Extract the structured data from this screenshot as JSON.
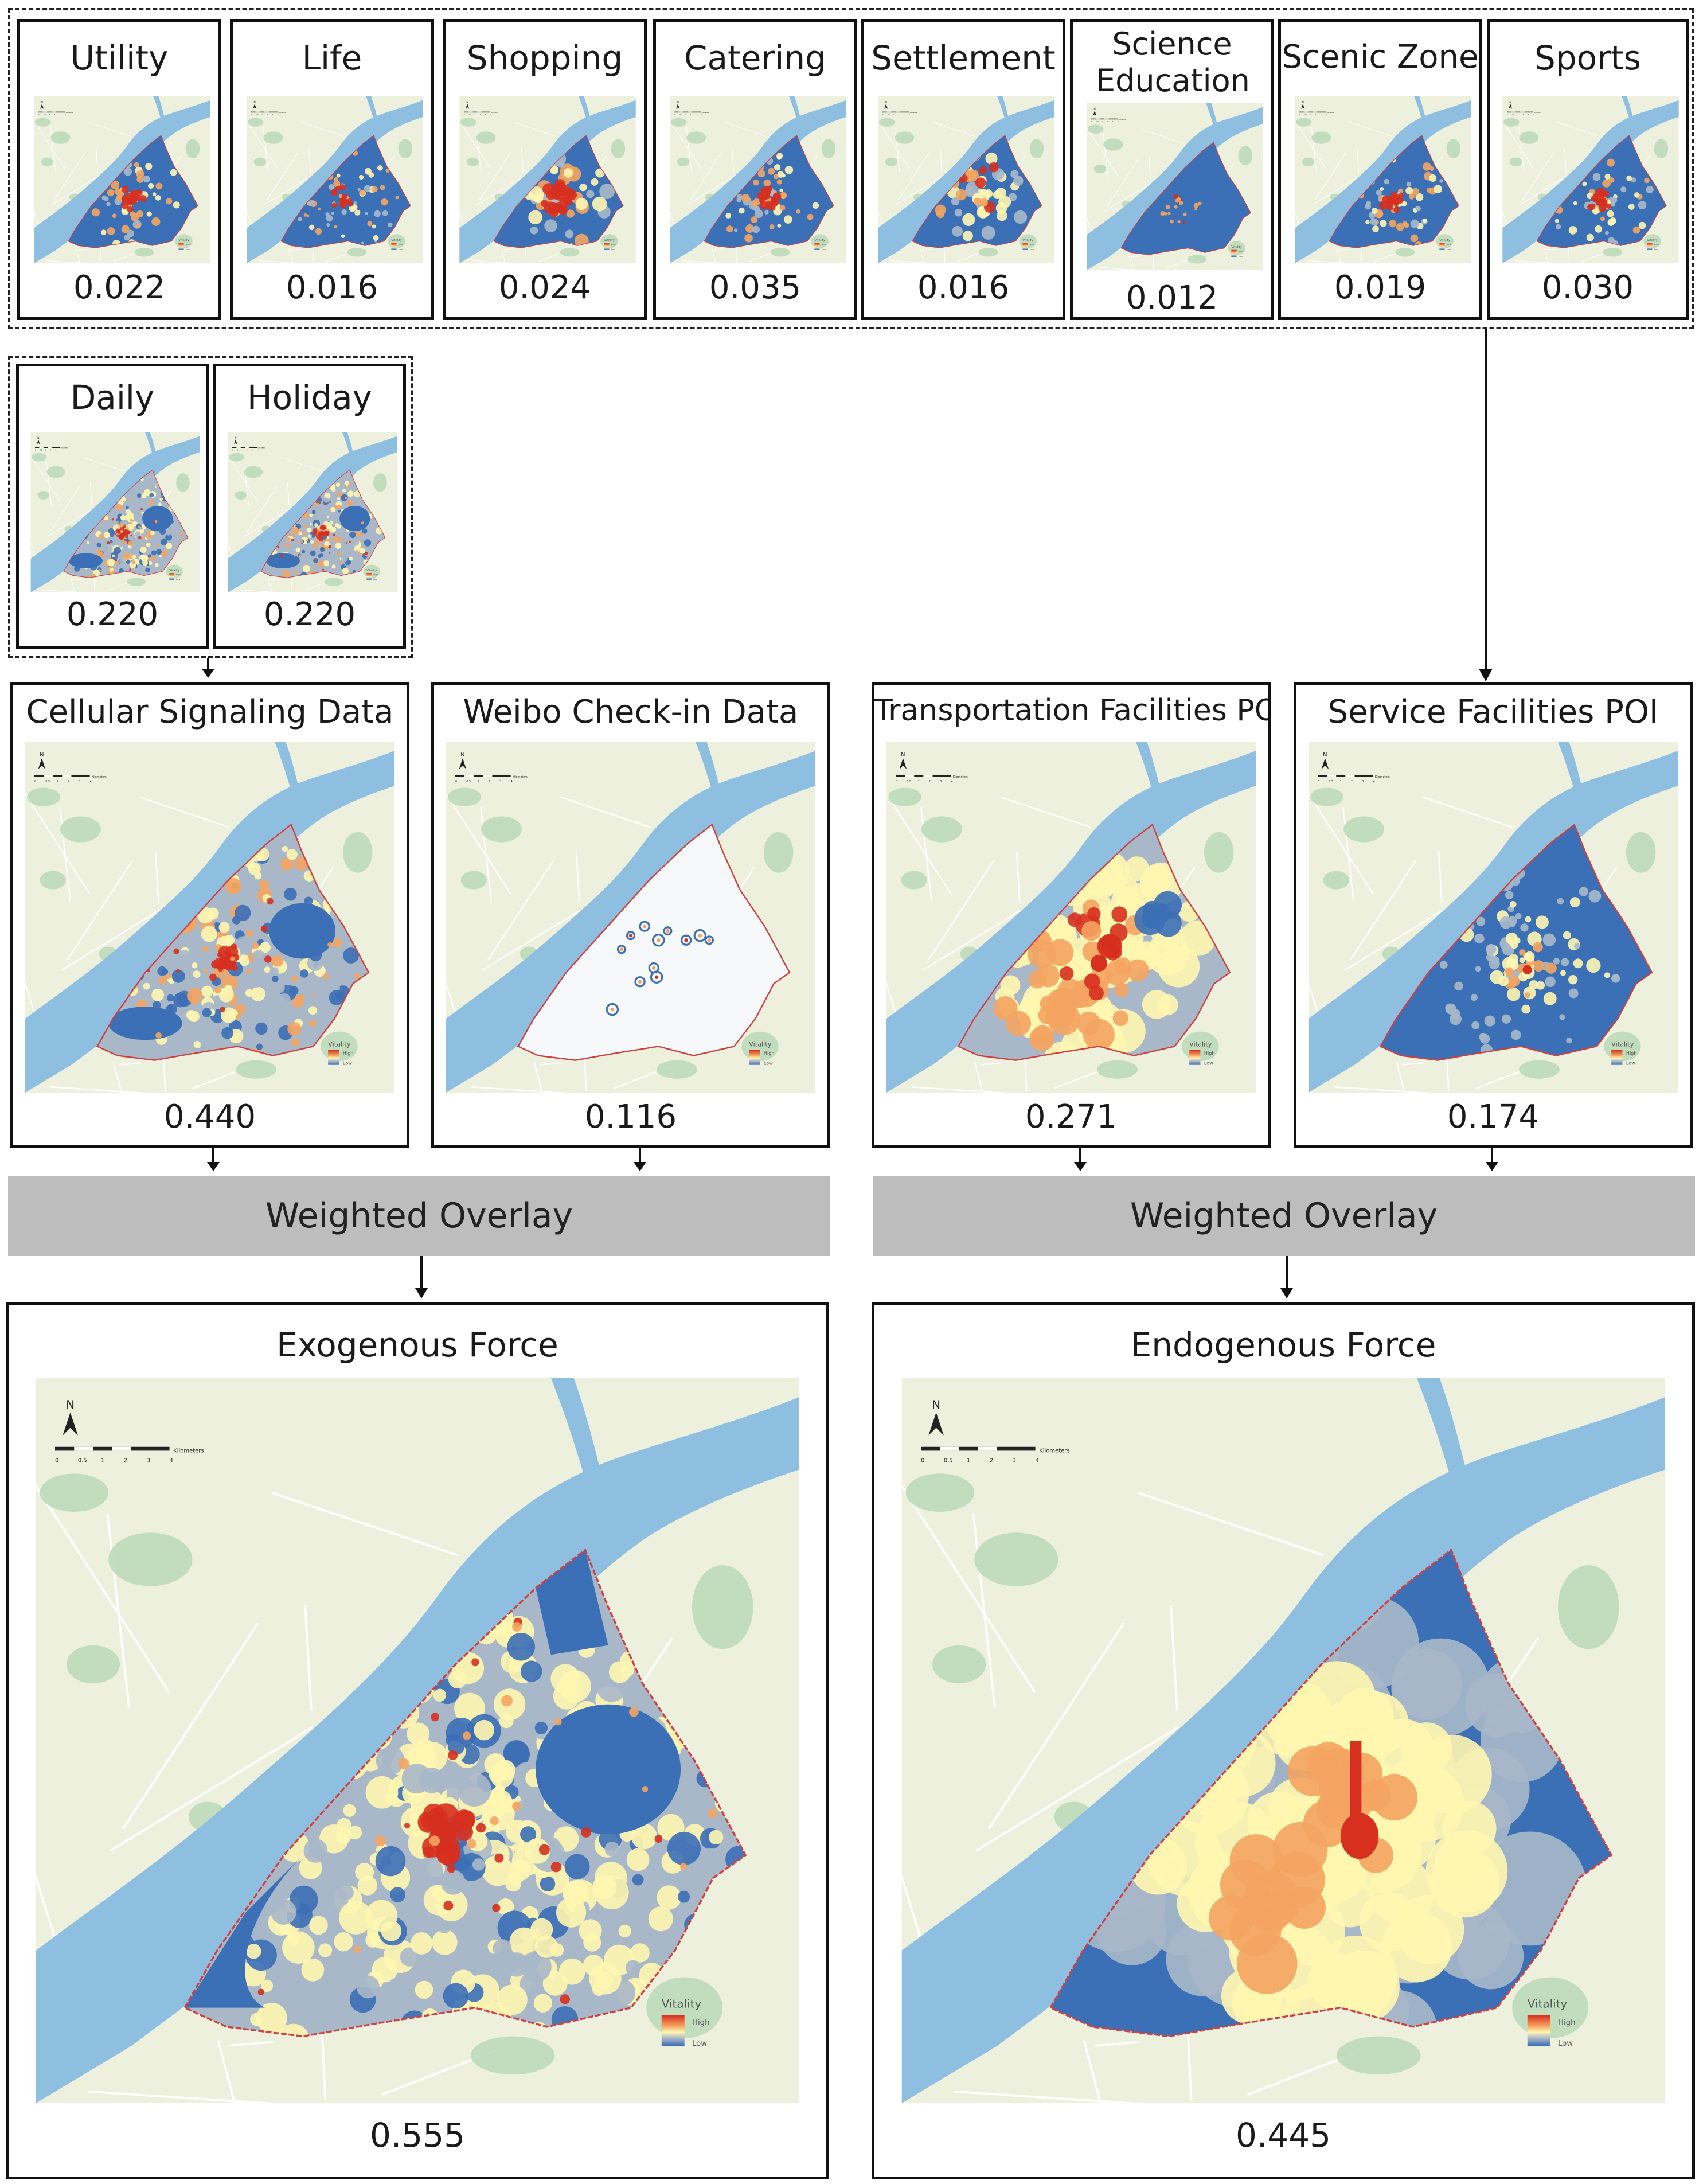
{
  "colors": {
    "land": "#eef0de",
    "river": "#8fbfe0",
    "park": "#b9d9b8",
    "high": "#d7301f",
    "mid_high": "#f4a460",
    "mid": "#fff6b0",
    "mid_low": "#a9b8c9",
    "low": "#3b6fb6",
    "band": "#bdbdbd",
    "outline": "#d04040"
  },
  "poi_categories": [
    {
      "label": "Utility",
      "value": "0.022",
      "pattern": "center"
    },
    {
      "label": "Life",
      "value": "0.016",
      "pattern": "scatter"
    },
    {
      "label": "Shopping",
      "value": "0.024",
      "pattern": "center-large"
    },
    {
      "label": "Catering",
      "value": "0.035",
      "pattern": "center"
    },
    {
      "label": "Settlement",
      "value": "0.016",
      "pattern": "spread"
    },
    {
      "label": "Science Education",
      "value": "0.012",
      "pattern": "sparse"
    },
    {
      "label": "Scenic Zone",
      "value": "0.019",
      "pattern": "center"
    },
    {
      "label": "Sports",
      "value": "0.030",
      "pattern": "center"
    }
  ],
  "cellular_periods": [
    {
      "label": "Daily",
      "value": "0.220"
    },
    {
      "label": "Holiday",
      "value": "0.220"
    }
  ],
  "data_sources": [
    {
      "label": "Cellular Signaling Data",
      "value": "0.440",
      "style": "cellular"
    },
    {
      "label": "Weibo Check-in Data",
      "value": "0.116",
      "style": "weibo"
    },
    {
      "label": "Transportation Facilities POI",
      "value": "0.271",
      "style": "transport"
    },
    {
      "label": "Service Facilities POI",
      "value": "0.174",
      "style": "service"
    }
  ],
  "overlay_label": "Weighted Overlay",
  "forces": [
    {
      "label": "Exogenous Force",
      "value": "0.555",
      "style": "exogenous"
    },
    {
      "label": "Endogenous Force",
      "value": "0.445",
      "style": "endogenous"
    }
  ],
  "legend": {
    "title": "Vitality",
    "high": "High",
    "low": "Low"
  },
  "map_furniture": {
    "north": "N",
    "scale_units": "Kilometers",
    "scale_ticks": [
      "0",
      "0.5",
      "1",
      "2",
      "3",
      "4"
    ]
  }
}
